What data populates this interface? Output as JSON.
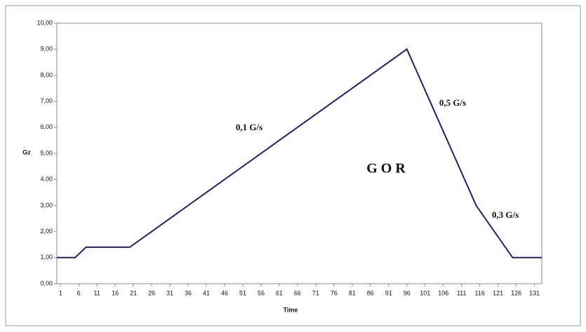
{
  "chart_data": {
    "type": "line",
    "xlabel": "Time",
    "ylabel": "Gz",
    "annotations": [
      "0,1 G/s",
      "0,5 G/s",
      "0,3 G/s",
      "G O R"
    ],
    "x": [
      0,
      5,
      8,
      20,
      96,
      115,
      125,
      133
    ],
    "series": [
      {
        "color": "#1f1f6b",
        "values": [
          1,
          1,
          1.4,
          1.4,
          9,
          3,
          1,
          1
        ]
      }
    ],
    "xlim": [
      0,
      133
    ],
    "xticks": [
      1,
      6,
      11,
      16,
      21,
      26,
      31,
      36,
      41,
      46,
      51,
      56,
      61,
      66,
      71,
      76,
      81,
      86,
      91,
      96,
      101,
      106,
      111,
      116,
      121,
      126,
      131
    ],
    "ylim": [
      0,
      10
    ],
    "yticks": [
      {
        "value": 0,
        "label": "0,00"
      },
      {
        "value": 1,
        "label": "1,00"
      },
      {
        "value": 2,
        "label": "2,00"
      },
      {
        "value": 3,
        "label": "3,00"
      },
      {
        "value": 4,
        "label": "4,00"
      },
      {
        "value": 5,
        "label": "5,00"
      },
      {
        "value": 6,
        "label": "6,00"
      },
      {
        "value": 7,
        "label": "7,00"
      },
      {
        "value": 8,
        "label": "8,00"
      },
      {
        "value": 9,
        "label": "9,00"
      },
      {
        "value": 10,
        "label": "10,00"
      }
    ],
    "grid": false
  }
}
